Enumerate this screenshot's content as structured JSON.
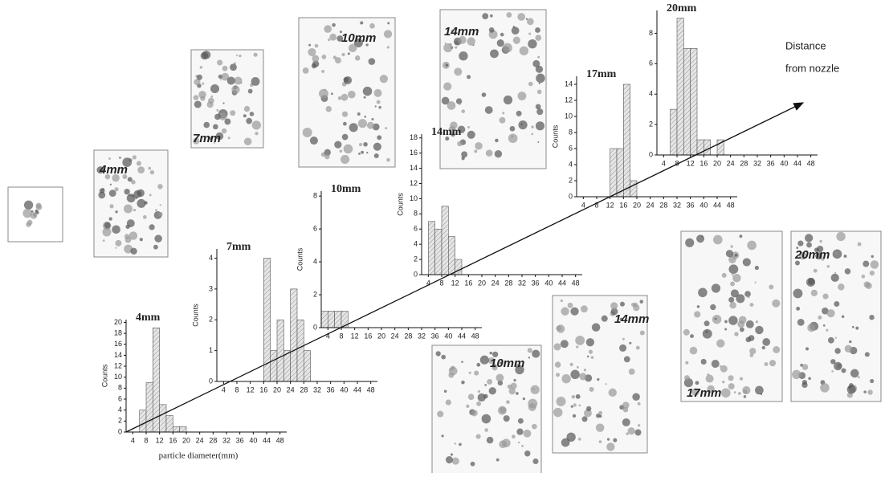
{
  "chart_data": [
    {
      "type": "histogram",
      "title": "4mm",
      "ylabel": "Counts",
      "xlabel": "particle diameter(mm)",
      "bins": [
        6,
        8,
        10,
        12,
        14,
        16,
        18,
        20
      ],
      "values": [
        4,
        9,
        19,
        5,
        3,
        1,
        1
      ],
      "color": "#d8d8d8",
      "xlim": [
        2,
        50
      ],
      "ylim": [
        0,
        20.5
      ],
      "xticks": [
        4,
        8,
        12,
        16,
        20,
        24,
        28,
        32,
        36,
        40,
        44,
        48
      ],
      "yticks": [
        0,
        2,
        4,
        6,
        8,
        10,
        12,
        14,
        16,
        18,
        20
      ]
    },
    {
      "type": "histogram",
      "title": "7mm",
      "ylabel": "Counts",
      "bins": [
        16,
        18,
        20,
        22,
        24,
        26,
        28,
        30
      ],
      "values": [
        4,
        1,
        2,
        1,
        3,
        2,
        1
      ],
      "color": "#d8d8d8",
      "xlim": [
        2,
        50
      ],
      "ylim": [
        0,
        4.3
      ],
      "xticks": [
        4,
        8,
        12,
        16,
        20,
        24,
        28,
        32,
        36,
        40,
        44,
        48
      ],
      "yticks": [
        0,
        1,
        2,
        3,
        4
      ]
    },
    {
      "type": "histogram",
      "title": "10mm",
      "ylabel": "Counts",
      "bins": [
        2,
        4,
        6,
        8,
        10
      ],
      "values": [
        1,
        1,
        1,
        1
      ],
      "color": "#d8d8d8",
      "xlim": [
        2,
        50
      ],
      "ylim": [
        0,
        8.3
      ],
      "xticks": [
        4,
        8,
        12,
        16,
        20,
        24,
        28,
        32,
        36,
        40,
        44,
        48
      ],
      "yticks": [
        0,
        2,
        4,
        6,
        8
      ]
    },
    {
      "type": "histogram",
      "title": "14mm",
      "ylabel": "Counts",
      "bins": [
        4,
        6,
        8,
        10,
        12,
        14
      ],
      "values": [
        7,
        6,
        9,
        5,
        2
      ],
      "color": "#d8d8d8",
      "xlim": [
        2,
        50
      ],
      "ylim": [
        0,
        18.5
      ],
      "xticks": [
        4,
        8,
        12,
        16,
        20,
        24,
        28,
        32,
        36,
        40,
        44,
        48
      ],
      "yticks": [
        0,
        2,
        4,
        6,
        8,
        10,
        12,
        14,
        16,
        18
      ]
    },
    {
      "type": "histogram",
      "title": "17mm",
      "ylabel": "Counts",
      "bins": [
        12,
        14,
        16,
        18,
        20
      ],
      "values": [
        6,
        6,
        14,
        2
      ],
      "color": "#d8d8d8",
      "xlim": [
        2,
        50
      ],
      "ylim": [
        0,
        15
      ],
      "xticks": [
        4,
        8,
        12,
        16,
        20,
        24,
        28,
        32,
        36,
        40,
        44,
        48
      ],
      "yticks": [
        0,
        2,
        4,
        6,
        8,
        10,
        12,
        14
      ]
    },
    {
      "type": "histogram",
      "title": "20mm",
      "bins": [
        6,
        8,
        10,
        12,
        14,
        16,
        18,
        20,
        22
      ],
      "values": [
        3,
        9,
        7,
        7,
        1,
        1,
        0,
        1
      ],
      "color": "#d8d8d8",
      "xlim": [
        2,
        50
      ],
      "ylim": [
        0,
        9.5
      ],
      "xticks": [
        4,
        8,
        12,
        16,
        20,
        24,
        28,
        32,
        36,
        40,
        44,
        48
      ],
      "yticks": [
        0,
        2,
        4,
        6,
        8
      ]
    }
  ],
  "figure": {
    "arrow_label": [
      "Distance",
      "from nozzle"
    ],
    "micrographs": [
      "4mm",
      "7mm",
      "10mm",
      "14mm",
      "10mm",
      "14mm",
      "17mm",
      "20mm"
    ]
  }
}
